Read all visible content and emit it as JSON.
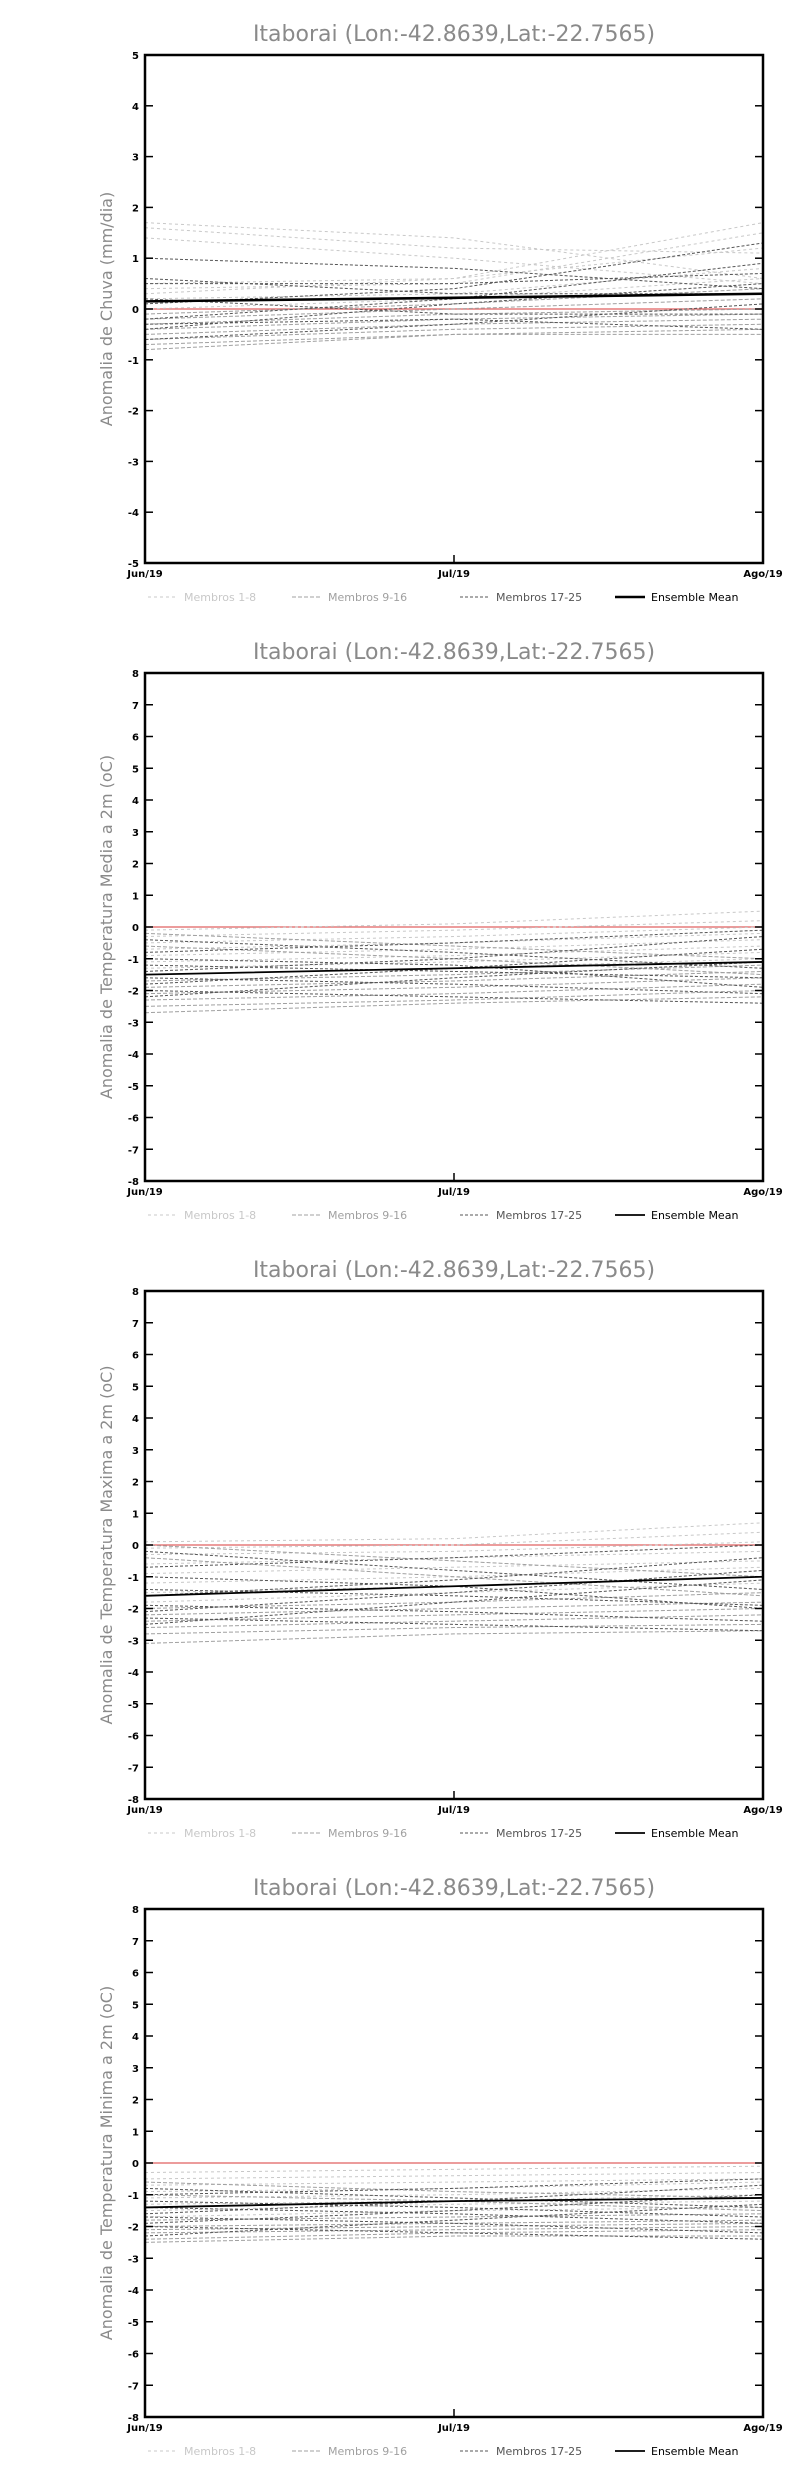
{
  "legend": {
    "entries": [
      {
        "label": "Membros 1-8",
        "color": "#c8c8c8",
        "dash": "3,3"
      },
      {
        "label": "Membros 9-16",
        "color": "#a0a0a0",
        "dash": "4,2"
      },
      {
        "label": "Membros 17-25",
        "color": "#555555",
        "dash": "3,2"
      },
      {
        "label": "Ensemble Mean",
        "color": "#000000",
        "dash": ""
      }
    ]
  },
  "chart_data": [
    {
      "type": "line",
      "title": "Itaborai (Lon:-42.8639,Lat:-22.7565)",
      "ylabel": "Anomalia de Chuva (mm/dia)",
      "xlabel": "",
      "categories": [
        "Jun/19",
        "Jul/19",
        "Ago/19"
      ],
      "ylim": [
        -5,
        5
      ],
      "yticks": [
        -5,
        -4,
        -3,
        -2,
        -1,
        0,
        1,
        2,
        3,
        4,
        5
      ],
      "zero_line_color": "#e06060",
      "members": [
        [
          1.7,
          1.4,
          0.6
        ],
        [
          1.6,
          1.2,
          1.1
        ],
        [
          1.4,
          1.0,
          0.5
        ],
        [
          0.5,
          0.6,
          1.7
        ],
        [
          0.4,
          0.5,
          1.5
        ],
        [
          0.3,
          0.6,
          1.2
        ],
        [
          0.2,
          0.3,
          0.8
        ],
        [
          0.0,
          0.2,
          0.6
        ],
        [
          -0.1,
          0.1,
          0.4
        ],
        [
          -0.2,
          0.0,
          0.2
        ],
        [
          -0.3,
          -0.1,
          0.0
        ],
        [
          -0.4,
          -0.2,
          -0.1
        ],
        [
          -0.5,
          -0.3,
          -0.2
        ],
        [
          -0.6,
          -0.4,
          -0.3
        ],
        [
          -0.7,
          -0.5,
          -0.4
        ],
        [
          -0.8,
          -0.5,
          -0.5
        ],
        [
          0.1,
          0.4,
          1.3
        ],
        [
          0.6,
          0.3,
          0.3
        ],
        [
          -0.2,
          0.2,
          0.9
        ],
        [
          0.2,
          -0.1,
          -0.1
        ],
        [
          -0.4,
          0.1,
          0.5
        ],
        [
          0.5,
          0.5,
          0.7
        ],
        [
          -0.6,
          -0.3,
          0.1
        ],
        [
          1.0,
          0.8,
          0.4
        ],
        [
          -0.3,
          -0.2,
          -0.4
        ]
      ],
      "mean": [
        0.15,
        0.22,
        0.3
      ]
    },
    {
      "type": "line",
      "title": "Itaborai (Lon:-42.8639,Lat:-22.7565)",
      "ylabel": "Anomalia de Temperatura Media a 2m (oC)",
      "xlabel": "",
      "categories": [
        "Jun/19",
        "Jul/19",
        "Ago/19"
      ],
      "ylim": [
        -8,
        8
      ],
      "yticks": [
        -8,
        -7,
        -6,
        -5,
        -4,
        -3,
        -2,
        -1,
        0,
        1,
        2,
        3,
        4,
        5,
        6,
        7,
        8
      ],
      "zero_line_color": "#e06060",
      "members": [
        [
          -0.1,
          0.1,
          0.5
        ],
        [
          -0.3,
          -0.1,
          0.2
        ],
        [
          -0.5,
          -0.3,
          0.0
        ],
        [
          -0.7,
          -0.5,
          -0.2
        ],
        [
          -0.9,
          -0.7,
          -0.4
        ],
        [
          -1.1,
          -0.9,
          -0.6
        ],
        [
          -1.3,
          -1.1,
          -0.8
        ],
        [
          -1.5,
          -1.3,
          -1.0
        ],
        [
          -1.7,
          -1.5,
          -1.2
        ],
        [
          -1.9,
          -1.7,
          -1.4
        ],
        [
          -2.1,
          -1.9,
          -1.6
        ],
        [
          -2.3,
          -2.1,
          -1.8
        ],
        [
          -2.5,
          -2.3,
          -2.0
        ],
        [
          -2.7,
          -2.4,
          -2.2
        ],
        [
          -0.2,
          -0.6,
          -1.0
        ],
        [
          -0.6,
          -1.0,
          -1.5
        ],
        [
          -1.0,
          -1.2,
          -1.9
        ],
        [
          -1.4,
          -1.0,
          -0.3
        ],
        [
          -1.8,
          -1.3,
          -0.7
        ],
        [
          -2.2,
          -1.6,
          -1.1
        ],
        [
          -0.4,
          -0.8,
          -1.3
        ],
        [
          -1.2,
          -1.4,
          -1.6
        ],
        [
          -1.6,
          -1.8,
          -2.1
        ],
        [
          -2.0,
          -2.2,
          -2.4
        ],
        [
          -0.8,
          -0.5,
          -0.1
        ]
      ],
      "mean": [
        -1.5,
        -1.3,
        -1.1
      ]
    },
    {
      "type": "line",
      "title": "Itaborai (Lon:-42.8639,Lat:-22.7565)",
      "ylabel": "Anomalia de Temperatura Maxima a 2m (oC)",
      "xlabel": "",
      "categories": [
        "Jun/19",
        "Jul/19",
        "Ago/19"
      ],
      "ylim": [
        -8,
        8
      ],
      "yticks": [
        -8,
        -7,
        -6,
        -5,
        -4,
        -3,
        -2,
        -1,
        0,
        1,
        2,
        3,
        4,
        5,
        6,
        7,
        8
      ],
      "zero_line_color": "#e06060",
      "members": [
        [
          0.1,
          0.2,
          0.7
        ],
        [
          -0.1,
          0.0,
          0.4
        ],
        [
          -0.3,
          -0.2,
          0.1
        ],
        [
          -0.6,
          -0.4,
          -0.2
        ],
        [
          -0.9,
          -0.7,
          -0.5
        ],
        [
          -1.2,
          -1.0,
          -0.7
        ],
        [
          -1.5,
          -1.3,
          -1.0
        ],
        [
          -1.8,
          -1.5,
          -1.2
        ],
        [
          -2.0,
          -1.8,
          -1.5
        ],
        [
          -2.2,
          -2.0,
          -1.8
        ],
        [
          -2.4,
          -2.2,
          -2.0
        ],
        [
          -2.6,
          -2.4,
          -2.2
        ],
        [
          -2.8,
          -2.6,
          -2.5
        ],
        [
          -3.1,
          -2.8,
          -2.7
        ],
        [
          0.0,
          -0.5,
          -1.0
        ],
        [
          -0.4,
          -1.0,
          -1.6
        ],
        [
          -1.0,
          -1.3,
          -2.0
        ],
        [
          -1.6,
          -1.1,
          -0.4
        ],
        [
          -2.1,
          -1.5,
          -0.8
        ],
        [
          -2.5,
          -1.8,
          -1.1
        ],
        [
          -0.2,
          -0.8,
          -1.4
        ],
        [
          -1.4,
          -1.6,
          -1.9
        ],
        [
          -1.9,
          -2.1,
          -2.4
        ],
        [
          -2.3,
          -2.5,
          -2.7
        ],
        [
          -0.7,
          -0.4,
          0.0
        ]
      ],
      "mean": [
        -1.6,
        -1.3,
        -1.0
      ]
    },
    {
      "type": "line",
      "title": "Itaborai (Lon:-42.8639,Lat:-22.7565)",
      "ylabel": "Anomalia de Temperatura Minima a 2m (oC)",
      "xlabel": "",
      "categories": [
        "Jun/19",
        "Jul/19",
        "Ago/19"
      ],
      "ylim": [
        -8,
        8
      ],
      "yticks": [
        -8,
        -7,
        -6,
        -5,
        -4,
        -3,
        -2,
        -1,
        0,
        1,
        2,
        3,
        4,
        5,
        6,
        7,
        8
      ],
      "zero_line_color": "#e06060",
      "members": [
        [
          -0.3,
          -0.2,
          -0.1
        ],
        [
          -0.5,
          -0.4,
          -0.3
        ],
        [
          -0.7,
          -0.6,
          -0.5
        ],
        [
          -0.9,
          -0.8,
          -0.6
        ],
        [
          -1.1,
          -1.0,
          -0.8
        ],
        [
          -1.3,
          -1.2,
          -1.0
        ],
        [
          -1.5,
          -1.3,
          -1.2
        ],
        [
          -1.7,
          -1.5,
          -1.4
        ],
        [
          -1.8,
          -1.7,
          -1.6
        ],
        [
          -2.0,
          -1.9,
          -1.8
        ],
        [
          -2.1,
          -2.0,
          -1.9
        ],
        [
          -2.2,
          -2.1,
          -2.0
        ],
        [
          -2.4,
          -2.2,
          -2.1
        ],
        [
          -2.5,
          -2.3,
          -2.3
        ],
        [
          -0.6,
          -0.9,
          -1.1
        ],
        [
          -1.0,
          -1.2,
          -1.5
        ],
        [
          -1.4,
          -1.6,
          -1.9
        ],
        [
          -1.6,
          -1.2,
          -0.7
        ],
        [
          -1.9,
          -1.5,
          -1.0
        ],
        [
          -2.3,
          -1.8,
          -1.3
        ],
        [
          -0.8,
          -1.1,
          -1.4
        ],
        [
          -1.2,
          -1.4,
          -1.7
        ],
        [
          -1.7,
          -1.9,
          -2.2
        ],
        [
          -2.0,
          -2.2,
          -2.4
        ],
        [
          -1.0,
          -0.8,
          -0.5
        ]
      ],
      "mean": [
        -1.4,
        -1.2,
        -1.1
      ]
    }
  ]
}
